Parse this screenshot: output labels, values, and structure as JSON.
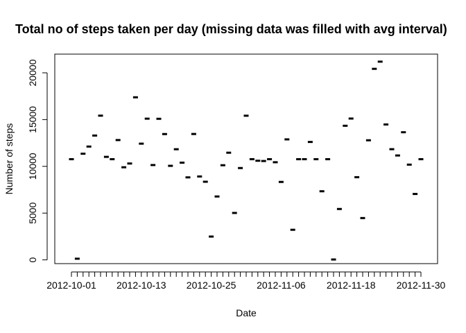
{
  "chart_data": {
    "type": "scatter",
    "title": "Total no of steps taken per day (missing data was filled with avg interval)",
    "xlabel": "Date",
    "ylabel": "Number of steps",
    "x_tick_labels": [
      "2012-10-01",
      "2012-10-13",
      "2012-10-25",
      "2012-11-06",
      "2012-11-18",
      "2012-11-30"
    ],
    "y_ticks": [
      0,
      5000,
      10000,
      15000,
      20000
    ],
    "ylim": [
      -400,
      22000
    ],
    "grid": false,
    "marker": "dash",
    "x": [
      "2012-10-01",
      "2012-10-02",
      "2012-10-03",
      "2012-10-04",
      "2012-10-05",
      "2012-10-06",
      "2012-10-07",
      "2012-10-08",
      "2012-10-09",
      "2012-10-10",
      "2012-10-11",
      "2012-10-12",
      "2012-10-13",
      "2012-10-14",
      "2012-10-15",
      "2012-10-16",
      "2012-10-17",
      "2012-10-18",
      "2012-10-19",
      "2012-10-20",
      "2012-10-21",
      "2012-10-22",
      "2012-10-23",
      "2012-10-24",
      "2012-10-25",
      "2012-10-26",
      "2012-10-27",
      "2012-10-28",
      "2012-10-29",
      "2012-10-30",
      "2012-10-31",
      "2012-11-01",
      "2012-11-02",
      "2012-11-03",
      "2012-11-04",
      "2012-11-05",
      "2012-11-06",
      "2012-11-07",
      "2012-11-08",
      "2012-11-09",
      "2012-11-10",
      "2012-11-11",
      "2012-11-12",
      "2012-11-13",
      "2012-11-14",
      "2012-11-15",
      "2012-11-16",
      "2012-11-17",
      "2012-11-18",
      "2012-11-19",
      "2012-11-20",
      "2012-11-21",
      "2012-11-22",
      "2012-11-23",
      "2012-11-24",
      "2012-11-25",
      "2012-11-26",
      "2012-11-27",
      "2012-11-28",
      "2012-11-29",
      "2012-11-30"
    ],
    "values": [
      10766,
      126,
      11352,
      12116,
      13294,
      15420,
      11015,
      10766,
      12811,
      9900,
      10304,
      17382,
      12426,
      15098,
      10139,
      15084,
      13452,
      10056,
      11829,
      10395,
      8821,
      13460,
      8918,
      8355,
      2492,
      6778,
      10119,
      11458,
      5018,
      9819,
      15414,
      10766,
      10600,
      10571,
      10766,
      10439,
      8334,
      12883,
      3219,
      10766,
      10766,
      12608,
      10765,
      7336,
      10766,
      41,
      5441,
      14339,
      15110,
      8841,
      4472,
      12787,
      20427,
      21194,
      14478,
      11834,
      11162,
      13646,
      10183,
      7047,
      10766
    ]
  }
}
